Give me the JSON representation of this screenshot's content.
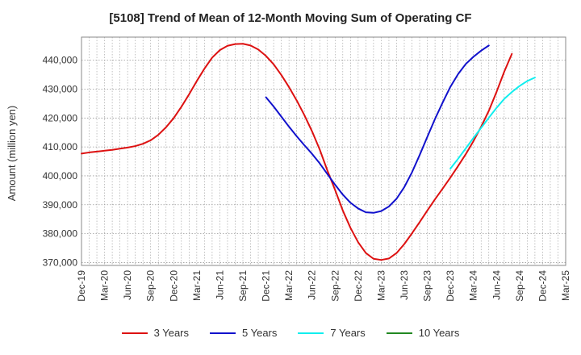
{
  "chart_data": {
    "type": "line",
    "title": "[5108]  Trend of Mean of 12-Month Moving Sum of Operating CF",
    "xlabel": "",
    "ylabel": "Amount (million yen)",
    "ylim": [
      369000,
      448000
    ],
    "y_ticks": [
      370000,
      380000,
      390000,
      400000,
      410000,
      420000,
      430000,
      440000
    ],
    "y_tick_labels": [
      "370,000",
      "380,000",
      "390,000",
      "400,000",
      "410,000",
      "420,000",
      "430,000",
      "440,000"
    ],
    "x_tick_labels": [
      "Dec-19",
      "Mar-20",
      "Jun-20",
      "Sep-20",
      "Dec-20",
      "Mar-21",
      "Jun-21",
      "Sep-21",
      "Dec-21",
      "Mar-22",
      "Jun-22",
      "Sep-22",
      "Dec-22",
      "Mar-23",
      "Jun-23",
      "Sep-23",
      "Dec-23",
      "Mar-24",
      "Jun-24",
      "Sep-24",
      "Dec-24",
      "Mar-25"
    ],
    "x_months": [
      "Dec-19",
      "Jan-20",
      "Feb-20",
      "Mar-20",
      "Apr-20",
      "May-20",
      "Jun-20",
      "Jul-20",
      "Aug-20",
      "Sep-20",
      "Oct-20",
      "Nov-20",
      "Dec-20",
      "Jan-21",
      "Feb-21",
      "Mar-21",
      "Apr-21",
      "May-21",
      "Jun-21",
      "Jul-21",
      "Aug-21",
      "Sep-21",
      "Oct-21",
      "Nov-21",
      "Dec-21",
      "Jan-22",
      "Feb-22",
      "Mar-22",
      "Apr-22",
      "May-22",
      "Jun-22",
      "Jul-22",
      "Aug-22",
      "Sep-22",
      "Oct-22",
      "Nov-22",
      "Dec-22",
      "Jan-23",
      "Feb-23",
      "Mar-23",
      "Apr-23",
      "May-23",
      "Jun-23",
      "Jul-23",
      "Aug-23",
      "Sep-23",
      "Oct-23",
      "Nov-23",
      "Dec-23",
      "Jan-24",
      "Feb-24",
      "Mar-24",
      "Apr-24",
      "May-24",
      "Jun-24",
      "Jul-24",
      "Aug-24",
      "Sep-24",
      "Oct-24",
      "Nov-24",
      "Dec-24"
    ],
    "series": [
      {
        "name": "3 Years",
        "color": "#dd1111",
        "start_index": 0,
        "values": [
          407700,
          408100,
          408400,
          408700,
          409000,
          409400,
          409800,
          410300,
          411100,
          412300,
          414200,
          416800,
          420000,
          423900,
          428200,
          432800,
          437100,
          440900,
          443500,
          445000,
          445600,
          445700,
          445100,
          443700,
          441500,
          438600,
          434900,
          430700,
          426100,
          421000,
          415400,
          409100,
          401800,
          395100,
          388000,
          382000,
          377000,
          373300,
          371300,
          370900,
          371400,
          373300,
          376400,
          380100,
          384000,
          388000,
          391900,
          395600,
          399400,
          403400,
          407500,
          412000,
          417000,
          422500,
          429000,
          436000,
          442200
        ]
      },
      {
        "name": "5 Years",
        "color": "#1111cc",
        "start_index": 24,
        "values": [
          427200,
          424000,
          420500,
          417000,
          413700,
          410600,
          407600,
          404300,
          400600,
          396900,
          393500,
          390700,
          388700,
          387400,
          387200,
          387800,
          389400,
          392100,
          396100,
          401200,
          407200,
          413500,
          419700,
          425400,
          430800,
          435200,
          438700,
          441200,
          443300,
          445100
        ]
      },
      {
        "name": "7 Years",
        "color": "#11eeee",
        "start_index": 48,
        "values": [
          402500,
          405900,
          409500,
          413100,
          416600,
          420100,
          423500,
          426600,
          429000,
          431100,
          432800,
          434000
        ]
      },
      {
        "name": "10 Years",
        "color": "#228822",
        "start_index": 0,
        "values": []
      }
    ]
  }
}
